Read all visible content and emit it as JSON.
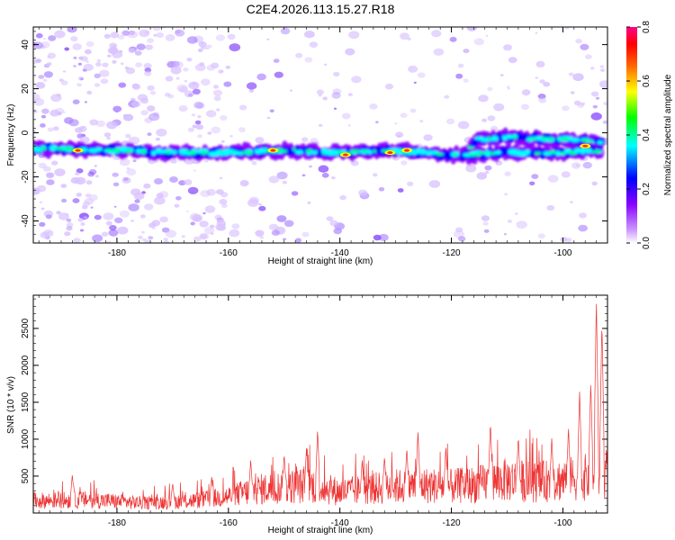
{
  "chart_data": [
    {
      "type": "heatmap",
      "title": "C2E4.2026.113.15.27.R18",
      "xlabel": "Height of straight line (km)",
      "ylabel": "Frequency (Hz)",
      "xlim": [
        -195,
        -92
      ],
      "ylim": [
        -50,
        48
      ],
      "xticks": [
        -180,
        -160,
        -140,
        -120,
        -100
      ],
      "yticks": [
        -40,
        -20,
        0,
        20,
        40
      ],
      "colorbar": {
        "label": "Normalized spectral amplitude",
        "range": [
          0,
          0.8
        ],
        "ticks": [
          "0.0",
          "0.2",
          "0.4",
          "0.6",
          "0.8"
        ],
        "colors": [
          "#ffffff",
          "#cc99ff",
          "#8800ff",
          "#0000ff",
          "#00ffff",
          "#00ff00",
          "#ffff00",
          "#ff6600",
          "#ff0000",
          "#ff0088"
        ]
      },
      "ridge": {
        "points": [
          [
            -195,
            -7
          ],
          [
            -180,
            -8
          ],
          [
            -170,
            -9
          ],
          [
            -160,
            -9
          ],
          [
            -150,
            -8
          ],
          [
            -140,
            -9
          ],
          [
            -130,
            -8
          ],
          [
            -121,
            -10
          ],
          [
            -118,
            -10
          ],
          [
            -115,
            -3
          ],
          [
            -110,
            -2
          ],
          [
            -100,
            -3
          ],
          [
            -93,
            -4
          ]
        ],
        "second_branch": [
          [
            -118,
            -10
          ],
          [
            -110,
            -9
          ],
          [
            -100,
            -9
          ],
          [
            -93,
            -8
          ]
        ],
        "hotspots": [
          [
            -187,
            -8
          ],
          [
            -152,
            -8
          ],
          [
            -139,
            -10
          ],
          [
            -131,
            -9
          ],
          [
            -128,
            -8
          ],
          [
            -96,
            -6
          ]
        ]
      }
    },
    {
      "type": "line",
      "xlabel": "Height of straight line (km)",
      "ylabel": "SNR (10 * v/v)",
      "xlim": [
        -195,
        -92
      ],
      "ylim": [
        0,
        2950
      ],
      "xticks": [
        -180,
        -160,
        -140,
        -120,
        -100
      ],
      "yticks": [
        500,
        1000,
        1500,
        2000,
        2500
      ],
      "series": [
        {
          "name": "SNR",
          "color": "#ee3333",
          "envelope": {
            "x": [
              -195,
              -185,
              -175,
              -165,
              -160,
              -155,
              -150,
              -145,
              -140,
              -135,
              -130,
              -125,
              -120,
              -115,
              -110,
              -105,
              -100,
              -95,
              -93
            ],
            "y": [
              220,
              240,
              180,
              230,
              300,
              420,
              470,
              500,
              380,
              430,
              480,
              500,
              480,
              520,
              600,
              560,
              600,
              650,
              700
            ]
          },
          "peaks": [
            [
              -188,
              520
            ],
            [
              -170,
              400
            ],
            [
              -163,
              490
            ],
            [
              -156,
              720
            ],
            [
              -150,
              800
            ],
            [
              -146,
              880
            ],
            [
              -144,
              1130
            ],
            [
              -136,
              720
            ],
            [
              -132,
              770
            ],
            [
              -128,
              880
            ],
            [
              -126,
              1110
            ],
            [
              -121,
              900
            ],
            [
              -113,
              1230
            ],
            [
              -108,
              1040
            ],
            [
              -102,
              1020
            ],
            [
              -99,
              1160
            ],
            [
              -97,
              1650
            ],
            [
              -95,
              1780
            ],
            [
              -94,
              2900
            ],
            [
              -93,
              2600
            ]
          ]
        }
      ]
    }
  ]
}
